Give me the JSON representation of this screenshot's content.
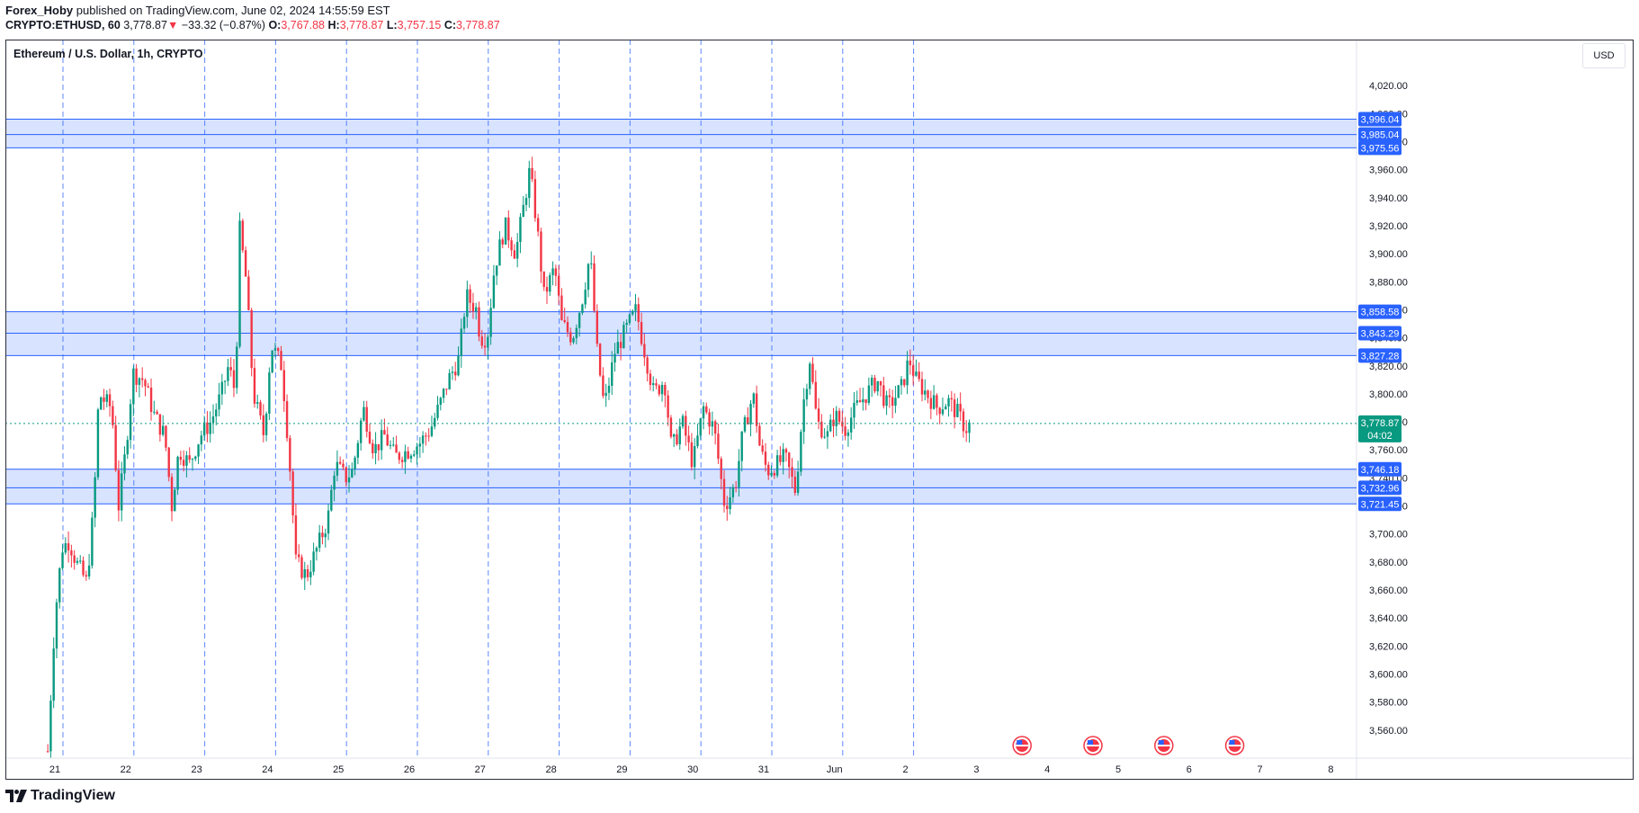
{
  "header": {
    "author": "Forex_Hoby",
    "published": "published on TradingView.com, June 02, 2024 14:55:59 EST",
    "symbol": "CRYPTO:ETHUSD, 60",
    "last": "3,778.87",
    "change": "−33.32 (−0.87%)",
    "o_label": "O:",
    "o_value": "3,767.88",
    "h_label": "H:",
    "h_value": "3,778.87",
    "l_label": "L:",
    "l_value": "3,757.15",
    "c_label": "C:",
    "c_value": "3,778.87"
  },
  "legend": "Ethereum / U.S. Dollar, 1h, CRYPTO",
  "currency": "USD",
  "brand": "TradingView",
  "colors": {
    "up": "#089981",
    "down": "#f23645",
    "zone": "#2962ff",
    "grid_line": "#2962ff"
  },
  "chart_data": {
    "type": "candlestick",
    "title": "Ethereum / U.S. Dollar, 1h, CRYPTO",
    "ylim": [
      3540,
      4040
    ],
    "y_ticks": [
      3560,
      3580,
      3600,
      3620,
      3640,
      3660,
      3680,
      3700,
      3720,
      3740,
      3760,
      3780,
      3800,
      3820,
      3840,
      3860,
      3880,
      3900,
      3920,
      3940,
      3960,
      3980,
      4000,
      4020
    ],
    "x_ticks": [
      "21",
      "22",
      "23",
      "24",
      "25",
      "26",
      "27",
      "28",
      "29",
      "30",
      "31",
      "Jun",
      "2",
      "3",
      "4",
      "5",
      "6",
      "7",
      "8"
    ],
    "day_separators": [
      "21",
      "22",
      "23",
      "24",
      "25",
      "26",
      "27",
      "28",
      "29",
      "30",
      "31",
      "Jun",
      "2"
    ],
    "zones": [
      {
        "from": 3975.56,
        "to": 3996.04,
        "mid": 3985.04
      },
      {
        "from": 3827.28,
        "to": 3858.58,
        "mid": 3843.29
      },
      {
        "from": 3721.45,
        "to": 3746.18,
        "mid": 3732.96
      }
    ],
    "zone_labels": [
      "3,996.04",
      "3,985.04",
      "3,975.56",
      "3,858.58",
      "3,843.29",
      "3,827.28",
      "3,746.18",
      "3,732.96",
      "3,721.45"
    ],
    "last_price": 3778.87,
    "last_price_label": "3,778.87",
    "countdown": "04:02",
    "events_on": [
      "4",
      "5",
      "6",
      "7"
    ],
    "close_path": [
      [
        "20.9",
        3545
      ],
      [
        "21.0",
        3640
      ],
      [
        "21.1",
        3690
      ],
      [
        "21.2",
        3695
      ],
      [
        "21.3",
        3680
      ],
      [
        "21.45",
        3665
      ],
      [
        "21.55",
        3720
      ],
      [
        "21.62",
        3800
      ],
      [
        "21.7",
        3795
      ],
      [
        "21.8",
        3790
      ],
      [
        "21.9",
        3720
      ],
      [
        "22.0",
        3760
      ],
      [
        "22.1",
        3815
      ],
      [
        "22.25",
        3810
      ],
      [
        "22.4",
        3785
      ],
      [
        "22.55",
        3770
      ],
      [
        "22.65",
        3720
      ],
      [
        "22.75",
        3760
      ],
      [
        "22.9",
        3750
      ],
      [
        "23.05",
        3770
      ],
      [
        "23.2",
        3780
      ],
      [
        "23.35",
        3800
      ],
      [
        "23.45",
        3820
      ],
      [
        "23.55",
        3800
      ],
      [
        "23.6",
        3920
      ],
      [
        "23.7",
        3880
      ],
      [
        "23.8",
        3800
      ],
      [
        "23.95",
        3770
      ],
      [
        "24.05",
        3835
      ],
      [
        "24.2",
        3820
      ],
      [
        "24.3",
        3760
      ],
      [
        "24.4",
        3680
      ],
      [
        "24.55",
        3670
      ],
      [
        "24.7",
        3690
      ],
      [
        "24.85",
        3710
      ],
      [
        "24.95",
        3750
      ],
      [
        "25.1",
        3740
      ],
      [
        "25.2",
        3745
      ],
      [
        "25.35",
        3790
      ],
      [
        "25.5",
        3760
      ],
      [
        "25.65",
        3770
      ],
      [
        "25.8",
        3755
      ],
      [
        "26.0",
        3760
      ],
      [
        "26.15",
        3765
      ],
      [
        "26.3",
        3775
      ],
      [
        "26.45",
        3795
      ],
      [
        "26.55",
        3810
      ],
      [
        "26.7",
        3825
      ],
      [
        "26.8",
        3870
      ],
      [
        "26.95",
        3860
      ],
      [
        "27.0",
        3840
      ],
      [
        "27.1",
        3840
      ],
      [
        "27.2",
        3890
      ],
      [
        "27.35",
        3920
      ],
      [
        "27.5",
        3900
      ],
      [
        "27.6",
        3930
      ],
      [
        "27.7",
        3960
      ],
      [
        "27.8",
        3920
      ],
      [
        "27.9",
        3870
      ],
      [
        "28.05",
        3890
      ],
      [
        "28.15",
        3850
      ],
      [
        "28.3",
        3840
      ],
      [
        "28.45",
        3870
      ],
      [
        "28.55",
        3900
      ],
      [
        "28.65",
        3830
      ],
      [
        "28.75",
        3790
      ],
      [
        "28.9",
        3830
      ],
      [
        "29.05",
        3845
      ],
      [
        "29.2",
        3860
      ],
      [
        "29.3",
        3835
      ],
      [
        "29.45",
        3800
      ],
      [
        "29.6",
        3810
      ],
      [
        "29.7",
        3760
      ],
      [
        "29.85",
        3780
      ],
      [
        "30.0",
        3750
      ],
      [
        "30.15",
        3790
      ],
      [
        "30.3",
        3775
      ],
      [
        "30.45",
        3720
      ],
      [
        "30.6",
        3735
      ],
      [
        "30.7",
        3770
      ],
      [
        "30.85",
        3800
      ],
      [
        "30.95",
        3760
      ],
      [
        "31.05",
        3745
      ],
      [
        "31.2",
        3750
      ],
      [
        "31.3",
        3755
      ],
      [
        "31.45",
        3730
      ],
      [
        "31.55",
        3790
      ],
      [
        "31.65",
        3825
      ],
      [
        "31.75",
        3780
      ],
      [
        "31.9",
        3770
      ],
      [
        "32.0",
        3785
      ],
      [
        "32.15",
        3775
      ],
      [
        "32.3",
        3790
      ],
      [
        "32.45",
        3800
      ],
      [
        "32.6",
        3810
      ],
      [
        "32.75",
        3790
      ],
      [
        "32.95",
        3805
      ],
      [
        "33.05",
        3825
      ],
      [
        "33.15",
        3810
      ],
      [
        "33.3",
        3800
      ],
      [
        "33.45",
        3790
      ],
      [
        "33.6",
        3795
      ],
      [
        "33.75",
        3785
      ],
      [
        "33.85",
        3775
      ],
      [
        "33.92",
        3778.87
      ]
    ]
  }
}
